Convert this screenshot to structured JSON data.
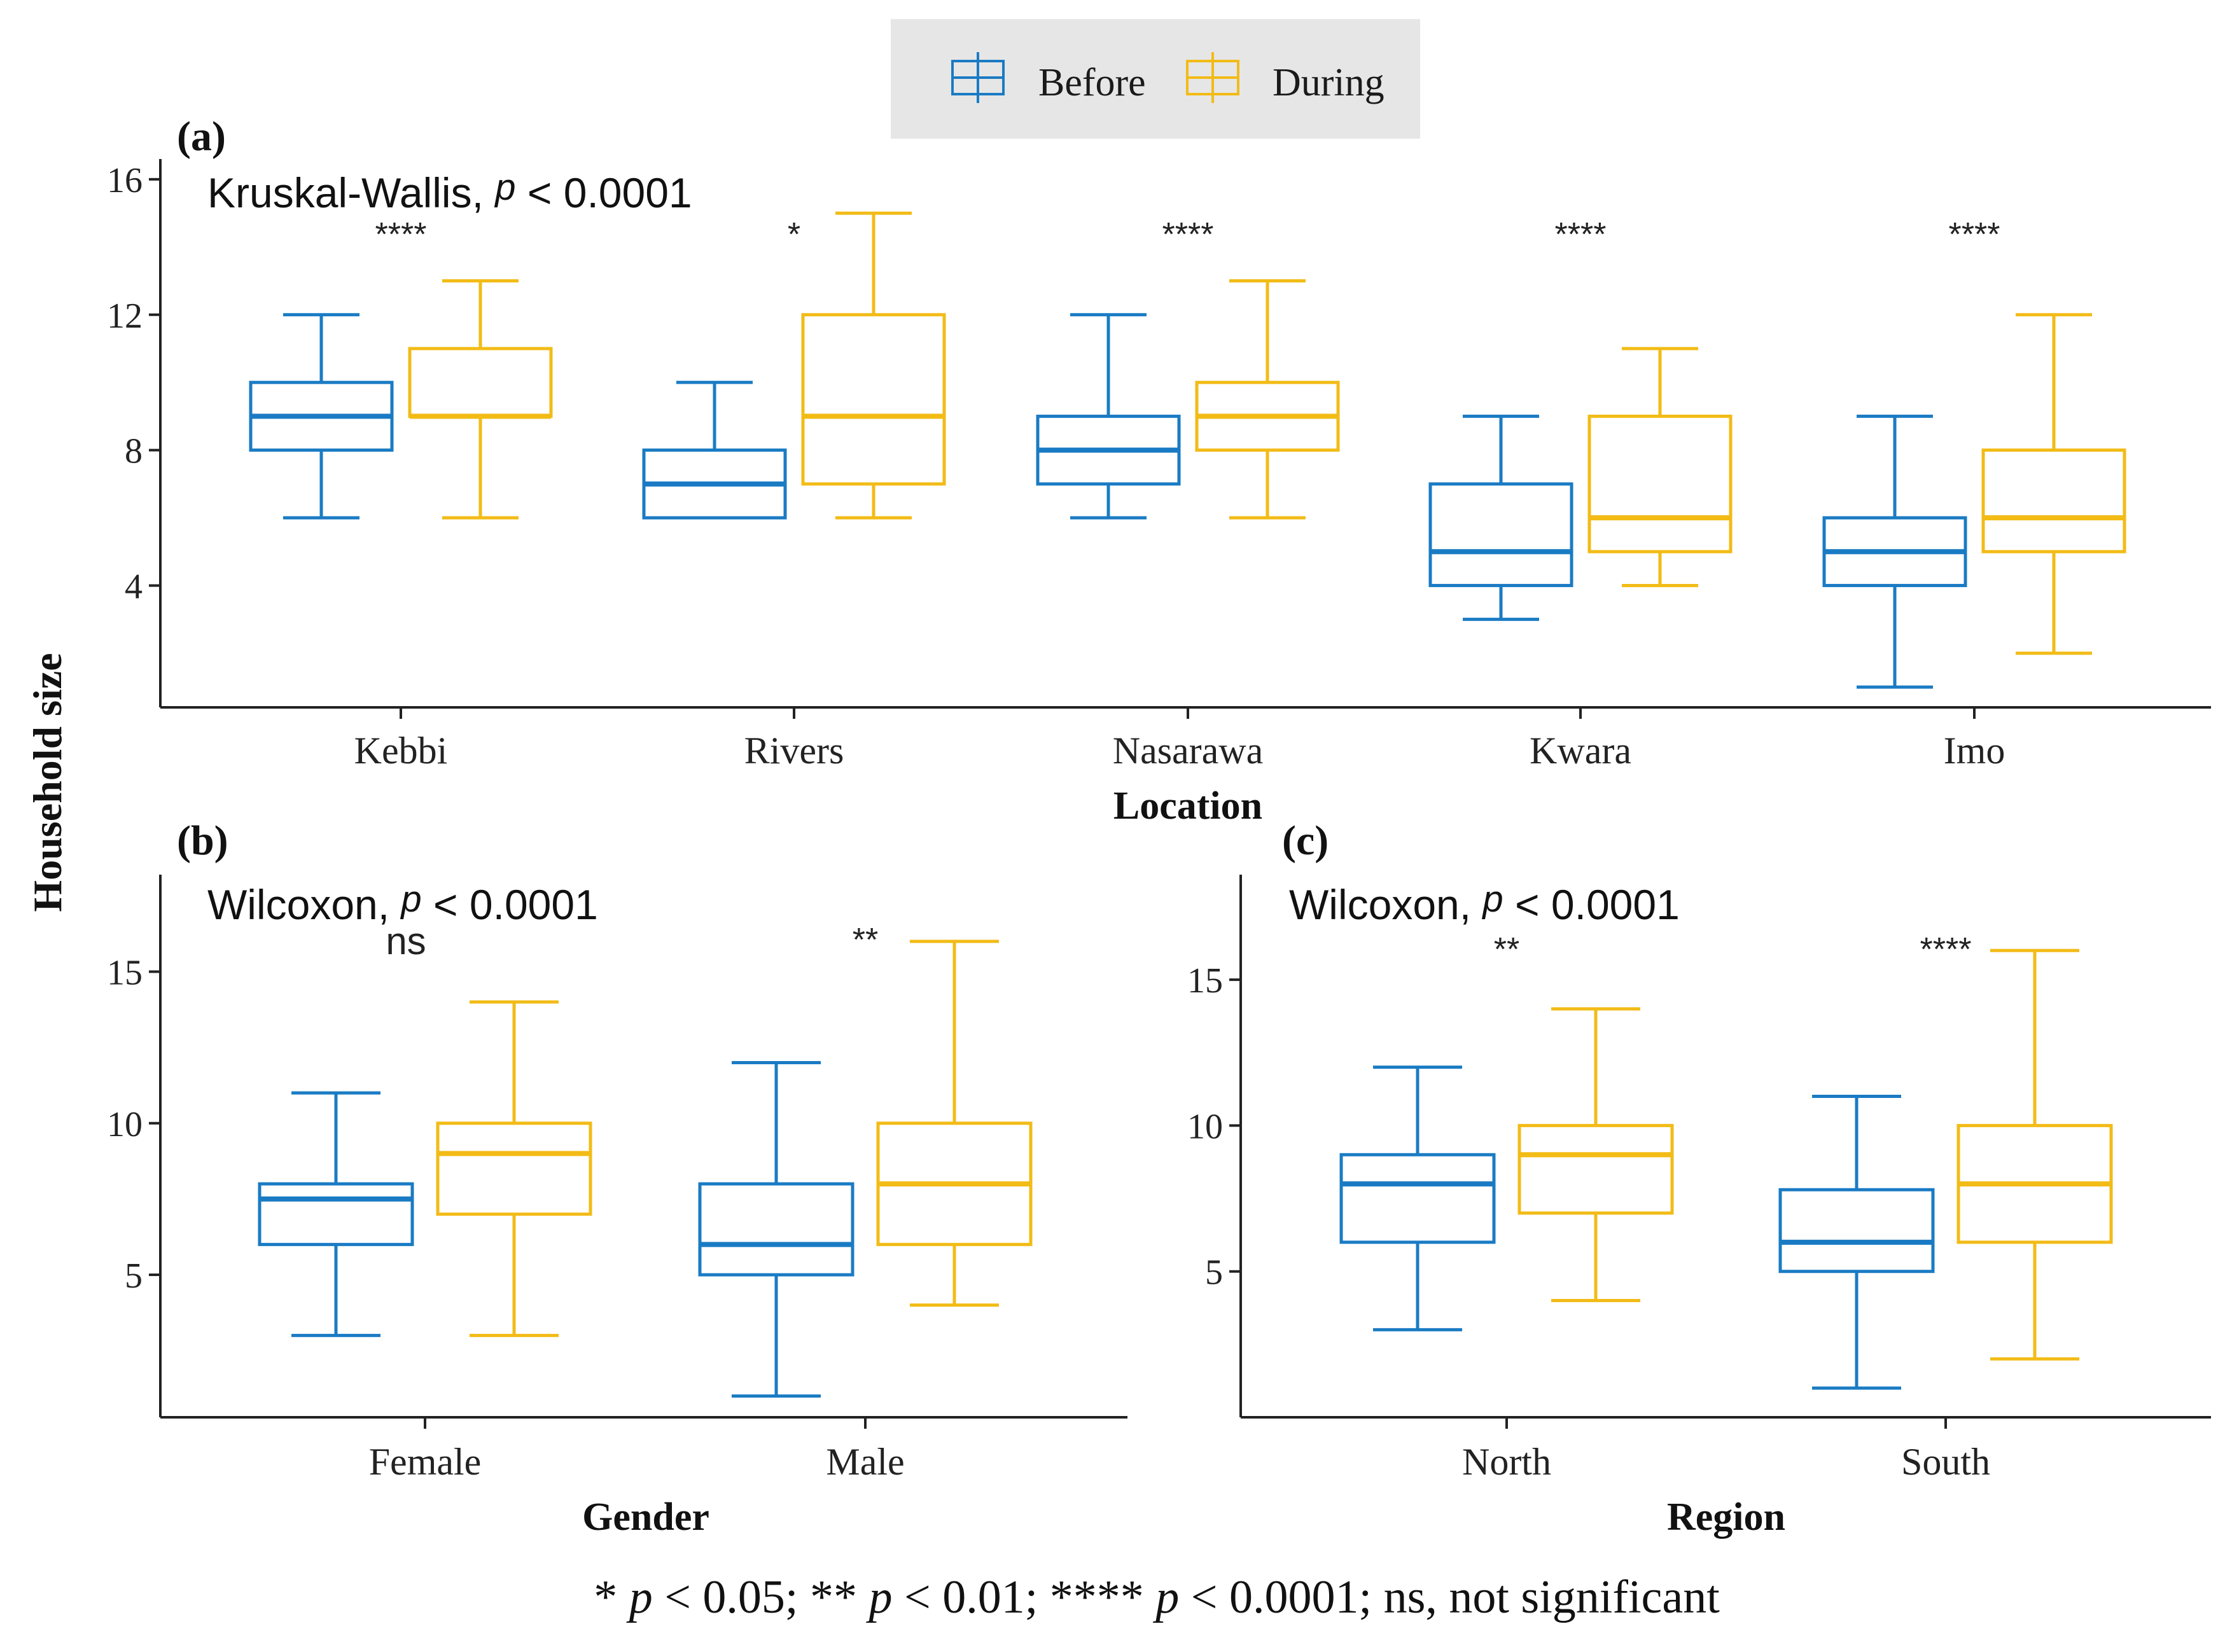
{
  "legend": {
    "items": [
      {
        "label": "Before",
        "color": "#1a7bc4"
      },
      {
        "label": "During",
        "color": "#f2bb16"
      }
    ]
  },
  "y_axis_label": "Household size",
  "footnote": {
    "p1": "p",
    "t1": " < 0.05; ** ",
    "p2": "p",
    "t2": " < 0.01; **** ",
    "p3": "p",
    "t3": " < 0.0001; ns, not significant",
    "lead": "* "
  },
  "chart_data": [
    {
      "id": "a",
      "type": "box",
      "panel_label": "(a)",
      "test_name": "Kruskal-Wallis, ",
      "test_p": "p",
      "test_rest": " < 0.0001",
      "xlabel": "Location",
      "ylabel": "Household size",
      "ylim": [
        0.4,
        16.6
      ],
      "yticks": [
        4,
        8,
        12,
        16
      ],
      "categories": [
        "Kebbi",
        "Rivers",
        "Nasarawa",
        "Kwara",
        "Imo"
      ],
      "significance": [
        "****",
        "*",
        "****",
        "****",
        "****"
      ],
      "series": [
        {
          "name": "Before",
          "boxes": [
            {
              "min": 6,
              "q1": 8,
              "median": 9,
              "q3": 10,
              "max": 12
            },
            {
              "min": 6,
              "q1": 6,
              "median": 7,
              "q3": 8,
              "max": 10
            },
            {
              "min": 6,
              "q1": 7,
              "median": 8,
              "q3": 9,
              "max": 12
            },
            {
              "min": 3,
              "q1": 4,
              "median": 5,
              "q3": 7,
              "max": 9
            },
            {
              "min": 1,
              "q1": 4,
              "median": 5,
              "q3": 6,
              "max": 9
            }
          ]
        },
        {
          "name": "During",
          "boxes": [
            {
              "min": 6,
              "q1": 9,
              "median": 9,
              "q3": 11,
              "max": 13
            },
            {
              "min": 6,
              "q1": 7,
              "median": 9,
              "q3": 12,
              "max": 15
            },
            {
              "min": 6,
              "q1": 8,
              "median": 9,
              "q3": 10,
              "max": 13
            },
            {
              "min": 4,
              "q1": 5,
              "median": 6,
              "q3": 9,
              "max": 11
            },
            {
              "min": 2,
              "q1": 5,
              "median": 6,
              "q3": 8,
              "max": 12
            }
          ]
        }
      ]
    },
    {
      "id": "b",
      "type": "box",
      "panel_label": "(b)",
      "test_name": "Wilcoxon, ",
      "test_p": "p",
      "test_rest": " < 0.0001",
      "xlabel": "Gender",
      "ylim": [
        0.3,
        18.2
      ],
      "yticks": [
        5,
        10,
        15
      ],
      "categories": [
        "Female",
        "Male"
      ],
      "significance": [
        "ns",
        "**"
      ],
      "series": [
        {
          "name": "Before",
          "boxes": [
            {
              "min": 3,
              "q1": 6,
              "median": 7.5,
              "q3": 8,
              "max": 11
            },
            {
              "min": 1,
              "q1": 5,
              "median": 6,
              "q3": 8,
              "max": 12
            }
          ]
        },
        {
          "name": "During",
          "boxes": [
            {
              "min": 3,
              "q1": 7,
              "median": 9,
              "q3": 10,
              "max": 14
            },
            {
              "min": 4,
              "q1": 6,
              "median": 8,
              "q3": 10,
              "max": 16
            }
          ]
        }
      ]
    },
    {
      "id": "c",
      "type": "box",
      "panel_label": "(c)",
      "test_name": "Wilcoxon, ",
      "test_p": "p",
      "test_rest": " < 0.0001",
      "xlabel": "Region",
      "ylim": [
        0.0,
        18.6
      ],
      "yticks": [
        5,
        10,
        15
      ],
      "categories": [
        "North",
        "South"
      ],
      "significance": [
        "**",
        "****"
      ],
      "series": [
        {
          "name": "Before",
          "boxes": [
            {
              "min": 3,
              "q1": 6,
              "median": 8,
              "q3": 9,
              "max": 12
            },
            {
              "min": 1,
              "q1": 5,
              "median": 6,
              "q3": 7.8,
              "max": 11
            }
          ]
        },
        {
          "name": "During",
          "boxes": [
            {
              "min": 4,
              "q1": 7,
              "median": 9,
              "q3": 10,
              "max": 14
            },
            {
              "min": 2,
              "q1": 6,
              "median": 8,
              "q3": 10,
              "max": 16
            }
          ]
        }
      ]
    }
  ]
}
